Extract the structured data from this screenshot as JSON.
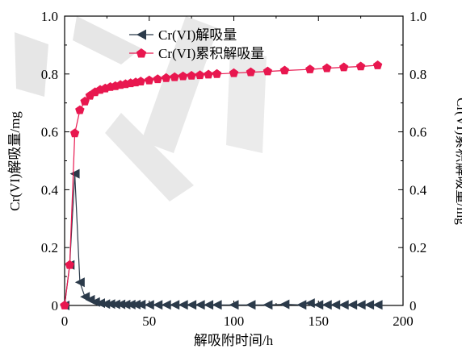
{
  "chart_data": {
    "type": "line",
    "title": "",
    "xlabel": "解吸附时间/h",
    "ylabel_left": "Cr(VI)解吸量/mg",
    "ylabel_right": "Cr(VI)累积解吸量/mg",
    "xlim": [
      0,
      200
    ],
    "ylim_left": [
      0,
      1.0
    ],
    "ylim_right": [
      0,
      1.0
    ],
    "x_ticks": [
      "0",
      "50",
      "100",
      "150",
      "200"
    ],
    "y_ticks": [
      "0",
      "0.2",
      "0.4",
      "0.6",
      "0.8",
      "1.0"
    ],
    "grid": false,
    "legend_position": "top-left",
    "series": [
      {
        "name": "Cr(VI)解吸量",
        "axis": "left",
        "color": "#2b3a4a",
        "marker": "left-triangle",
        "x": [
          0,
          3,
          6,
          9,
          12,
          15,
          18,
          21,
          24,
          27,
          30,
          33,
          36,
          39,
          42,
          45,
          50,
          55,
          60,
          65,
          70,
          75,
          80,
          85,
          90,
          100,
          110,
          120,
          130,
          140,
          145,
          150,
          155,
          160,
          165,
          170,
          175,
          180,
          185
        ],
        "values": [
          0.0,
          0.14,
          0.455,
          0.08,
          0.03,
          0.02,
          0.012,
          0.008,
          0.005,
          0.005,
          0.004,
          0.004,
          0.003,
          0.003,
          0.003,
          0.003,
          0.002,
          0.002,
          0.002,
          0.002,
          0.002,
          0.002,
          0.002,
          0.002,
          0.002,
          0.002,
          0.002,
          0.002,
          0.004,
          0.002,
          0.008,
          0.002,
          0.002,
          0.002,
          0.002,
          0.002,
          0.002,
          0.002,
          0.002
        ]
      },
      {
        "name": "Cr(VI)累积解吸量",
        "axis": "right",
        "color": "#e8174f",
        "marker": "pentagon",
        "x": [
          0,
          3,
          6,
          9,
          12,
          15,
          18,
          21,
          24,
          27,
          30,
          33,
          36,
          39,
          42,
          45,
          50,
          55,
          60,
          65,
          70,
          75,
          80,
          85,
          90,
          100,
          110,
          120,
          130,
          145,
          155,
          165,
          175,
          185
        ],
        "values": [
          0.0,
          0.14,
          0.595,
          0.675,
          0.705,
          0.725,
          0.737,
          0.745,
          0.75,
          0.755,
          0.758,
          0.762,
          0.765,
          0.768,
          0.771,
          0.774,
          0.778,
          0.782,
          0.786,
          0.789,
          0.792,
          0.794,
          0.796,
          0.798,
          0.8,
          0.803,
          0.806,
          0.809,
          0.812,
          0.816,
          0.82,
          0.823,
          0.826,
          0.83
        ]
      }
    ]
  }
}
